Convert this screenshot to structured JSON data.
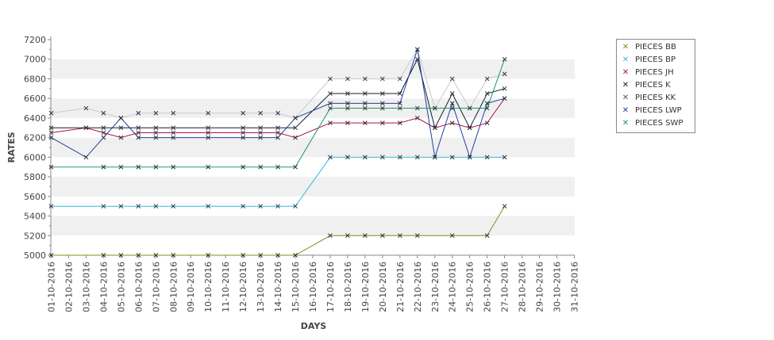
{
  "chart_data": {
    "type": "line",
    "title": "",
    "xlabel": "DAYS",
    "ylabel": "RATES",
    "ylim": [
      5000,
      7200
    ],
    "ytick_step": 200,
    "grid": "alternating horizontal bands",
    "legend_position": "right",
    "categories": [
      "01-10-2016",
      "02-10-2016",
      "03-10-2016",
      "04-10-2016",
      "05-10-2016",
      "06-10-2016",
      "07-10-2016",
      "08-10-2016",
      "09-10-2016",
      "10-10-2016",
      "11-10-2016",
      "12-10-2016",
      "13-10-2016",
      "14-10-2016",
      "15-10-2016",
      "16-10-2016",
      "17-10-2016",
      "18-10-2016",
      "19-10-2016",
      "20-10-2016",
      "21-10-2016",
      "22-10-2016",
      "23-10-2016",
      "24-10-2016",
      "25-10-2016",
      "26-10-2016",
      "27-10-2016",
      "28-10-2016",
      "29-10-2016",
      "30-10-2016",
      "31-10-2016"
    ],
    "series": [
      {
        "name": "PIECES BB",
        "color": "#8a8a1a",
        "marker": "x-icon",
        "x": [
          "01-10-2016",
          "04-10-2016",
          "05-10-2016",
          "06-10-2016",
          "07-10-2016",
          "08-10-2016",
          "10-10-2016",
          "12-10-2016",
          "13-10-2016",
          "14-10-2016",
          "15-10-2016",
          "17-10-2016",
          "18-10-2016",
          "19-10-2016",
          "20-10-2016",
          "21-10-2016",
          "22-10-2016",
          "24-10-2016",
          "26-10-2016",
          "27-10-2016"
        ],
        "values": [
          5000,
          5000,
          5000,
          5000,
          5000,
          5000,
          5000,
          5000,
          5000,
          5000,
          5000,
          5200,
          5200,
          5200,
          5200,
          5200,
          5200,
          5200,
          5200,
          5500
        ]
      },
      {
        "name": "PIECES BP",
        "color": "#35b8e0",
        "marker": "x-icon",
        "x": [
          "01-10-2016",
          "04-10-2016",
          "05-10-2016",
          "06-10-2016",
          "07-10-2016",
          "08-10-2016",
          "10-10-2016",
          "12-10-2016",
          "13-10-2016",
          "14-10-2016",
          "15-10-2016",
          "17-10-2016",
          "18-10-2016",
          "19-10-2016",
          "20-10-2016",
          "21-10-2016",
          "22-10-2016",
          "23-10-2016",
          "24-10-2016",
          "25-10-2016",
          "26-10-2016",
          "27-10-2016"
        ],
        "values": [
          5500,
          5500,
          5500,
          5500,
          5500,
          5500,
          5500,
          5500,
          5500,
          5500,
          5500,
          6000,
          6000,
          6000,
          6000,
          6000,
          6000,
          6000,
          6000,
          6000,
          6000,
          6000
        ]
      },
      {
        "name": "PIECES JH",
        "color": "#b0104a",
        "marker": "x-icon",
        "x": [
          "01-10-2016",
          "03-10-2016",
          "04-10-2016",
          "05-10-2016",
          "06-10-2016",
          "07-10-2016",
          "08-10-2016",
          "10-10-2016",
          "12-10-2016",
          "13-10-2016",
          "14-10-2016",
          "15-10-2016",
          "17-10-2016",
          "18-10-2016",
          "19-10-2016",
          "20-10-2016",
          "21-10-2016",
          "22-10-2016",
          "23-10-2016",
          "24-10-2016",
          "25-10-2016",
          "26-10-2016",
          "27-10-2016"
        ],
        "values": [
          6250,
          6300,
          6250,
          6200,
          6250,
          6250,
          6250,
          6250,
          6250,
          6250,
          6250,
          6200,
          6350,
          6350,
          6350,
          6350,
          6350,
          6400,
          6300,
          6350,
          6300,
          6350,
          6600
        ]
      },
      {
        "name": "PIECES K",
        "color": "#0a2030",
        "marker": "x-icon",
        "x": [
          "01-10-2016",
          "03-10-2016",
          "04-10-2016",
          "05-10-2016",
          "06-10-2016",
          "07-10-2016",
          "08-10-2016",
          "10-10-2016",
          "12-10-2016",
          "13-10-2016",
          "14-10-2016",
          "15-10-2016",
          "17-10-2016",
          "18-10-2016",
          "19-10-2016",
          "20-10-2016",
          "21-10-2016",
          "22-10-2016",
          "23-10-2016",
          "24-10-2016",
          "25-10-2016",
          "26-10-2016",
          "27-10-2016"
        ],
        "values": [
          6300,
          6300,
          6300,
          6300,
          6300,
          6300,
          6300,
          6300,
          6300,
          6300,
          6300,
          6300,
          6650,
          6650,
          6650,
          6650,
          6650,
          7000,
          6300,
          6650,
          6300,
          6650,
          6700
        ]
      },
      {
        "name": "PIECES KK",
        "color": "#c8c8d8",
        "marker": "x-icon",
        "x": [
          "01-10-2016",
          "03-10-2016",
          "04-10-2016",
          "05-10-2016",
          "06-10-2016",
          "07-10-2016",
          "08-10-2016",
          "10-10-2016",
          "12-10-2016",
          "13-10-2016",
          "14-10-2016",
          "15-10-2016",
          "17-10-2016",
          "18-10-2016",
          "19-10-2016",
          "20-10-2016",
          "21-10-2016",
          "22-10-2016",
          "23-10-2016",
          "24-10-2016",
          "25-10-2016",
          "26-10-2016",
          "27-10-2016"
        ],
        "values": [
          6450,
          6500,
          6450,
          6400,
          6450,
          6450,
          6450,
          6450,
          6450,
          6450,
          6450,
          6400,
          6800,
          6800,
          6800,
          6800,
          6800,
          7100,
          6500,
          6800,
          6500,
          6800,
          6850
        ]
      },
      {
        "name": "PIECES LWP",
        "color": "#1f3fa0",
        "marker": "x-icon",
        "x": [
          "01-10-2016",
          "03-10-2016",
          "04-10-2016",
          "05-10-2016",
          "06-10-2016",
          "07-10-2016",
          "08-10-2016",
          "10-10-2016",
          "12-10-2016",
          "13-10-2016",
          "14-10-2016",
          "15-10-2016",
          "17-10-2016",
          "18-10-2016",
          "19-10-2016",
          "20-10-2016",
          "21-10-2016",
          "22-10-2016",
          "23-10-2016",
          "24-10-2016",
          "25-10-2016",
          "26-10-2016",
          "27-10-2016"
        ],
        "values": [
          6200,
          6000,
          6200,
          6400,
          6200,
          6200,
          6200,
          6200,
          6200,
          6200,
          6200,
          6400,
          6550,
          6550,
          6550,
          6550,
          6550,
          7100,
          6000,
          6550,
          6000,
          6550,
          6600
        ]
      },
      {
        "name": "PIECES SWP",
        "color": "#1a9a6a",
        "marker": "x-icon",
        "x": [
          "01-10-2016",
          "04-10-2016",
          "05-10-2016",
          "06-10-2016",
          "07-10-2016",
          "08-10-2016",
          "10-10-2016",
          "12-10-2016",
          "13-10-2016",
          "14-10-2016",
          "15-10-2016",
          "17-10-2016",
          "18-10-2016",
          "19-10-2016",
          "20-10-2016",
          "21-10-2016",
          "22-10-2016",
          "23-10-2016",
          "24-10-2016",
          "25-10-2016",
          "26-10-2016",
          "27-10-2016"
        ],
        "values": [
          5900,
          5900,
          5900,
          5900,
          5900,
          5900,
          5900,
          5900,
          5900,
          5900,
          5900,
          6500,
          6500,
          6500,
          6500,
          6500,
          6500,
          6500,
          6500,
          6500,
          6500,
          7000
        ]
      }
    ]
  }
}
